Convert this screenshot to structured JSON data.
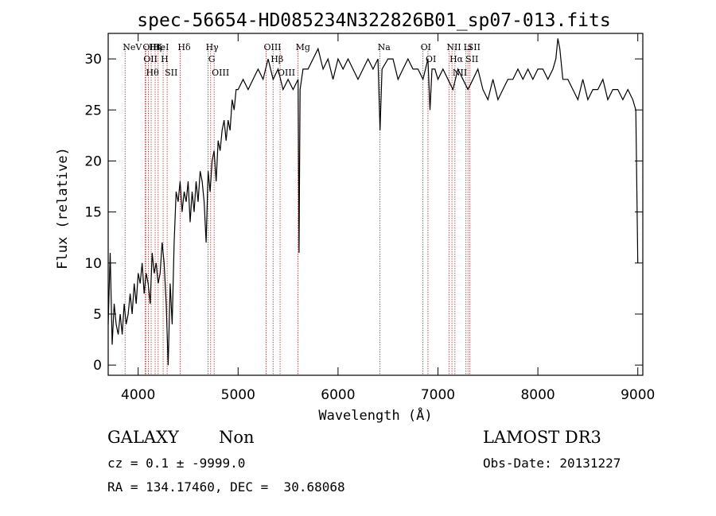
{
  "chart_data": {
    "type": "line",
    "title": "spec-56654-HD085234N322826B01_sp07-013.fits",
    "xlabel": "Wavelength (Å)",
    "ylabel": "Flux (relative)",
    "xlim": [
      3700,
      9050
    ],
    "ylim": [
      -1,
      32.5
    ],
    "xticks": [
      4000,
      5000,
      6000,
      7000,
      8000,
      9000
    ],
    "yticks": [
      0,
      5,
      10,
      15,
      20,
      25,
      30
    ],
    "grid": false,
    "line_color": "#000000",
    "marker_color": "#b03030",
    "series": [
      {
        "x": [
          3700,
          3720,
          3740,
          3760,
          3780,
          3800,
          3820,
          3840,
          3860,
          3880,
          3900,
          3920,
          3940,
          3960,
          3980,
          4000,
          4020,
          4040,
          4060,
          4080,
          4100,
          4120,
          4140,
          4160,
          4180,
          4200,
          4220,
          4240,
          4260,
          4280,
          4300,
          4320,
          4340,
          4360,
          4380,
          4400,
          4420,
          4440,
          4460,
          4480,
          4500,
          4520,
          4540,
          4560,
          4580,
          4600,
          4620,
          4640,
          4660,
          4680,
          4700,
          4720,
          4740,
          4760,
          4780,
          4800,
          4820,
          4840,
          4860,
          4880,
          4900,
          4920,
          4940,
          4960,
          4980,
          5000,
          5050,
          5100,
          5150,
          5200,
          5250,
          5300,
          5350,
          5400,
          5450,
          5500,
          5550,
          5600,
          5610,
          5620,
          5650,
          5700,
          5750,
          5800,
          5850,
          5900,
          5950,
          6000,
          6050,
          6100,
          6150,
          6200,
          6250,
          6300,
          6350,
          6400,
          6420,
          6440,
          6500,
          6550,
          6600,
          6650,
          6700,
          6750,
          6800,
          6850,
          6900,
          6920,
          6940,
          6970,
          7000,
          7050,
          7100,
          7150,
          7200,
          7250,
          7300,
          7350,
          7400,
          7450,
          7500,
          7550,
          7600,
          7650,
          7700,
          7750,
          7800,
          7850,
          7900,
          7950,
          8000,
          8050,
          8100,
          8150,
          8180,
          8200,
          8220,
          8250,
          8300,
          8350,
          8400,
          8450,
          8500,
          8550,
          8600,
          8650,
          8700,
          8750,
          8800,
          8850,
          8900,
          8950,
          8980,
          9000
        ],
        "y": [
          4,
          11,
          2,
          6,
          4,
          3,
          5,
          3,
          6,
          4,
          5,
          7,
          5,
          8,
          6,
          9,
          8,
          10,
          7,
          9,
          8,
          6,
          11,
          9,
          10,
          8,
          9,
          12,
          10,
          6,
          0,
          8,
          4,
          12,
          17,
          16,
          18,
          15,
          17,
          16,
          18,
          14,
          17,
          15,
          18,
          16,
          19,
          18,
          16,
          12,
          19,
          17,
          20,
          21,
          18,
          22,
          21,
          23,
          24,
          22,
          24,
          23,
          26,
          25,
          27,
          27,
          28,
          27,
          28,
          29,
          28,
          30,
          28,
          29,
          27,
          28,
          27,
          28,
          11,
          27,
          29,
          29,
          30,
          31,
          29,
          30,
          28,
          30,
          29,
          30,
          29,
          28,
          29,
          30,
          29,
          30,
          23,
          29,
          30,
          30,
          28,
          29,
          30,
          29,
          29,
          28,
          30,
          25,
          29,
          29,
          28,
          29,
          28,
          27,
          29,
          28,
          27,
          28,
          29,
          27,
          26,
          28,
          26,
          27,
          28,
          28,
          29,
          28,
          29,
          28,
          29,
          29,
          28,
          29,
          30,
          32,
          31,
          28,
          28,
          27,
          26,
          28,
          26,
          27,
          27,
          28,
          26,
          27,
          27,
          26,
          27,
          26,
          25,
          10
        ]
      }
    ],
    "line_markers": [
      {
        "wavelength": 3869,
        "label": "NeV"
      },
      {
        "wavelength": 4069,
        "label": "OII"
      },
      {
        "wavelength": 4076,
        "label": "OII"
      },
      {
        "wavelength": 4102,
        "label": "Hθ"
      },
      {
        "wavelength": 4130,
        "label": "Hη"
      },
      {
        "wavelength": 4170,
        "label": "HeI"
      },
      {
        "wavelength": 4200,
        "label": "K"
      },
      {
        "wavelength": 4250,
        "label": "H"
      },
      {
        "wavelength": 4290,
        "label": "SII"
      },
      {
        "wavelength": 4420,
        "label": "Hδ"
      },
      {
        "wavelength": 4700,
        "label": "Hγ"
      },
      {
        "wavelength": 4725,
        "label": "G"
      },
      {
        "wavelength": 4760,
        "label": "OIII"
      },
      {
        "wavelength": 5280,
        "label": "OIII"
      },
      {
        "wavelength": 5350,
        "label": "Hβ"
      },
      {
        "wavelength": 5420,
        "label": "OIII"
      },
      {
        "wavelength": 5600,
        "label": "Mg"
      },
      {
        "wavelength": 6420,
        "label": "Na"
      },
      {
        "wavelength": 6850,
        "label": "OI"
      },
      {
        "wavelength": 6900,
        "label": "OI"
      },
      {
        "wavelength": 7110,
        "label": "NII"
      },
      {
        "wavelength": 7140,
        "label": "Hα"
      },
      {
        "wavelength": 7170,
        "label": "NII"
      },
      {
        "wavelength": 7280,
        "label": "Li"
      },
      {
        "wavelength": 7300,
        "label": "SII"
      },
      {
        "wavelength": 7320,
        "label": "SII"
      }
    ]
  },
  "footer": {
    "class_label": "GALAXY",
    "subclass_label": "Non",
    "cz_text": "cz = 0.1 ± -9999.0",
    "coords_text": "RA = 134.17460, DEC =  30.68068",
    "survey_label": "LAMOST DR3",
    "obs_date_text": "Obs-Date: 20131227"
  }
}
